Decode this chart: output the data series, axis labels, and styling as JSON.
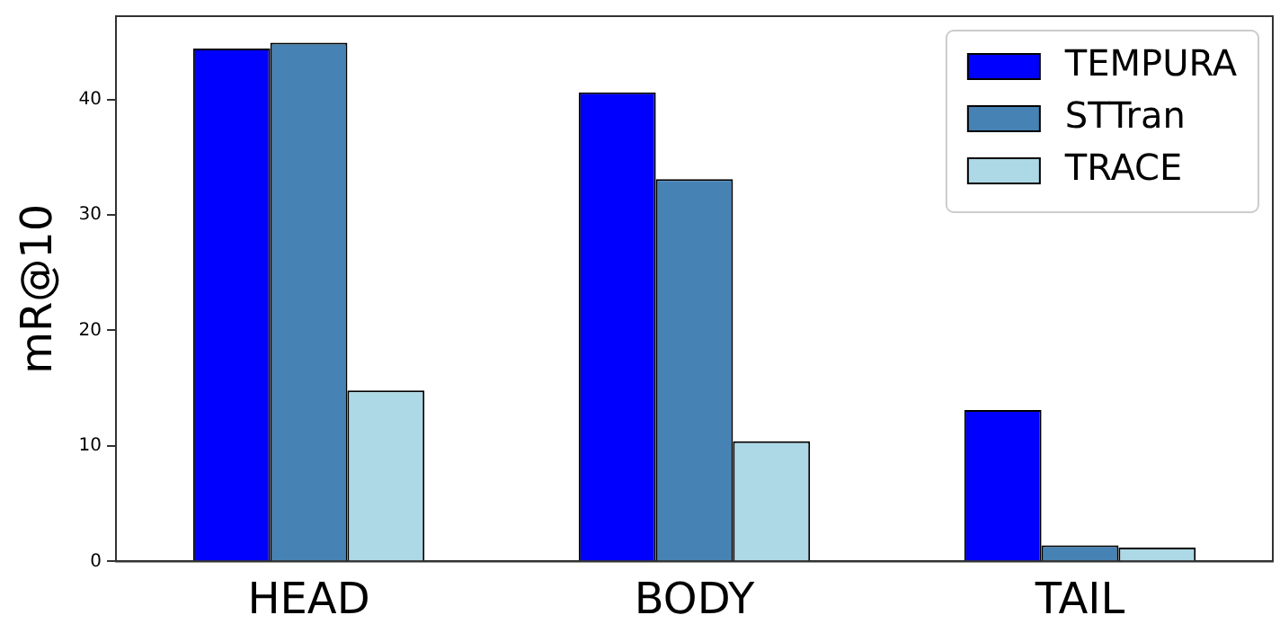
{
  "chart_data": {
    "type": "bar",
    "ylabel": "mR@10",
    "categories": [
      "HEAD",
      "BODY",
      "TAIL"
    ],
    "series": [
      {
        "name": "TEMPURA",
        "color": "#0000ff",
        "values": [
          44.4,
          40.6,
          13.1
        ]
      },
      {
        "name": "STTran",
        "color": "#4682b4",
        "values": [
          44.9,
          33.1,
          1.4
        ]
      },
      {
        "name": "TRACE",
        "color": "#add8e6",
        "values": [
          14.8,
          10.4,
          1.2
        ]
      }
    ],
    "ylim": [
      0,
      47.2
    ],
    "yticks": [
      0,
      10,
      20,
      30,
      40
    ],
    "grid": false,
    "legend": "top right"
  }
}
